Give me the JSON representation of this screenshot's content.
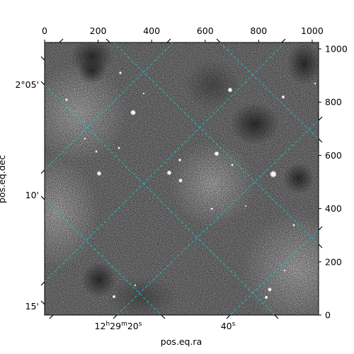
{
  "chart_data": {
    "type": "image",
    "colormap": "gray",
    "grid_color": "#17becf",
    "grid_style": "dashed",
    "pixel_axes": {
      "x_range": [
        0,
        1024
      ],
      "y_range": [
        0,
        1024
      ],
      "top_ticks": [
        0,
        200,
        400,
        600,
        800,
        1000
      ],
      "right_ticks": [
        0,
        200,
        400,
        600,
        800,
        1000
      ]
    },
    "world_axes": {
      "xlabel": "pos.eq.ra",
      "ylabel": "pos.eq.dec",
      "ra_ticks": [
        {
          "h": "12",
          "m": "29",
          "s": "20",
          "label_full": true
        },
        {
          "s": "40",
          "label_full": false
        }
      ],
      "dec_ticks": [
        "2°05'",
        "10'",
        "15'"
      ]
    },
    "ticks_text": {
      "top": [
        "0",
        "200",
        "400",
        "600",
        "800",
        "1000"
      ],
      "right": [
        "0",
        "200",
        "400",
        "600",
        "800",
        "1000"
      ],
      "left": [
        "2°05'",
        "10'",
        "15'"
      ]
    }
  }
}
